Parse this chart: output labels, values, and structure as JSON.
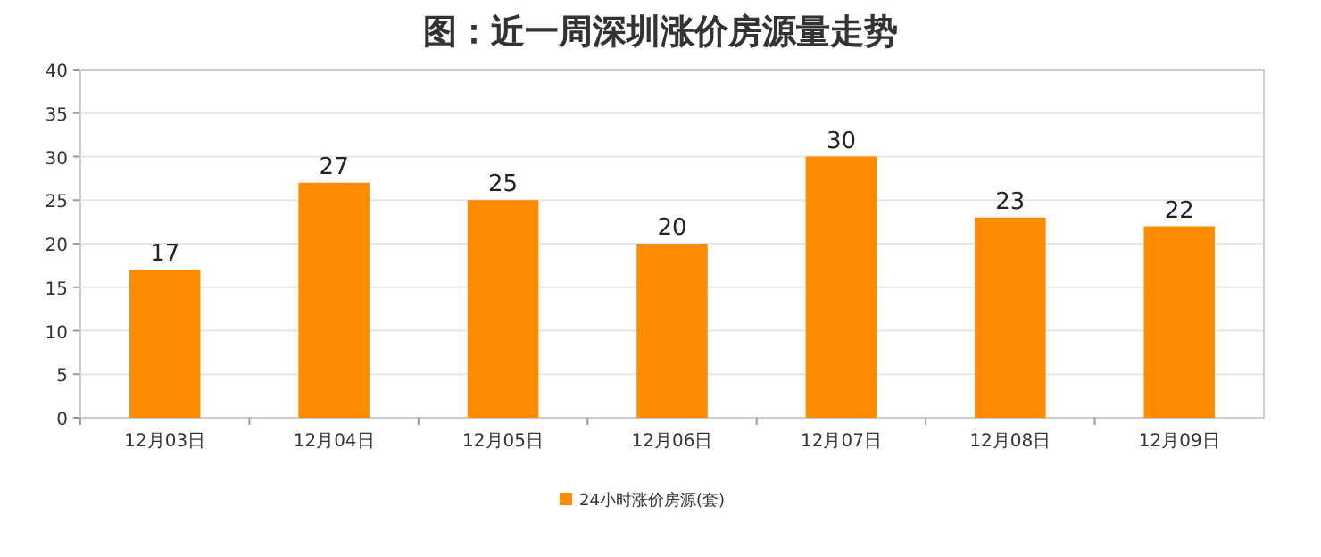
{
  "chart_data": {
    "type": "bar",
    "title": "图：近一周深圳涨价房源量走势",
    "categories": [
      "12月03日",
      "12月04日",
      "12月05日",
      "12月06日",
      "12月07日",
      "12月08日",
      "12月09日"
    ],
    "series": [
      {
        "name": "24小时涨价房源(套)",
        "color": "#ff8c00",
        "values": [
          17,
          27,
          25,
          20,
          30,
          23,
          22
        ]
      }
    ],
    "ylim": [
      0,
      40
    ],
    "yticks": [
      0,
      5,
      10,
      15,
      20,
      25,
      30,
      35,
      40
    ],
    "grid": "y",
    "legend": "bottom",
    "data_labels": true
  }
}
